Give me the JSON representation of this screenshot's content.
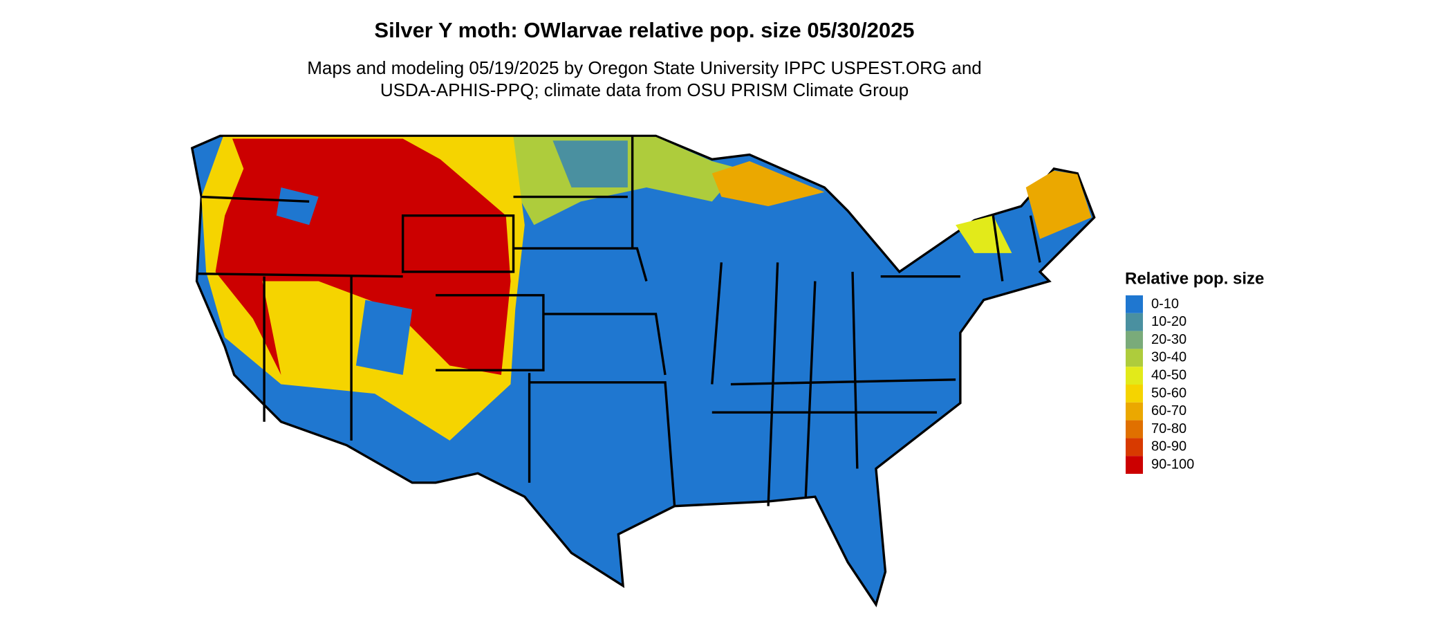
{
  "header": {
    "title": "Silver Y moth: OWlarvae relative pop. size 05/30/2025",
    "subtitle_lines": [
      "Maps and modeling 05/19/2025 by Oregon State University IPPC USPEST.ORG and",
      "USDA-APHIS-PPQ; climate data from OSU PRISM Climate Group"
    ]
  },
  "legend": {
    "title": "Relative pop. size",
    "items": [
      {
        "label": "0-10",
        "color": "#1f77d0"
      },
      {
        "label": "10-20",
        "color": "#4a90a0"
      },
      {
        "label": "20-30",
        "color": "#7aab7a"
      },
      {
        "label": "30-40",
        "color": "#aecc3c"
      },
      {
        "label": "40-50",
        "color": "#e2ea1a"
      },
      {
        "label": "50-60",
        "color": "#f5d400"
      },
      {
        "label": "60-70",
        "color": "#eba800"
      },
      {
        "label": "70-80",
        "color": "#e07000"
      },
      {
        "label": "80-90",
        "color": "#d83a00"
      },
      {
        "label": "90-100",
        "color": "#cc0000"
      }
    ]
  }
}
